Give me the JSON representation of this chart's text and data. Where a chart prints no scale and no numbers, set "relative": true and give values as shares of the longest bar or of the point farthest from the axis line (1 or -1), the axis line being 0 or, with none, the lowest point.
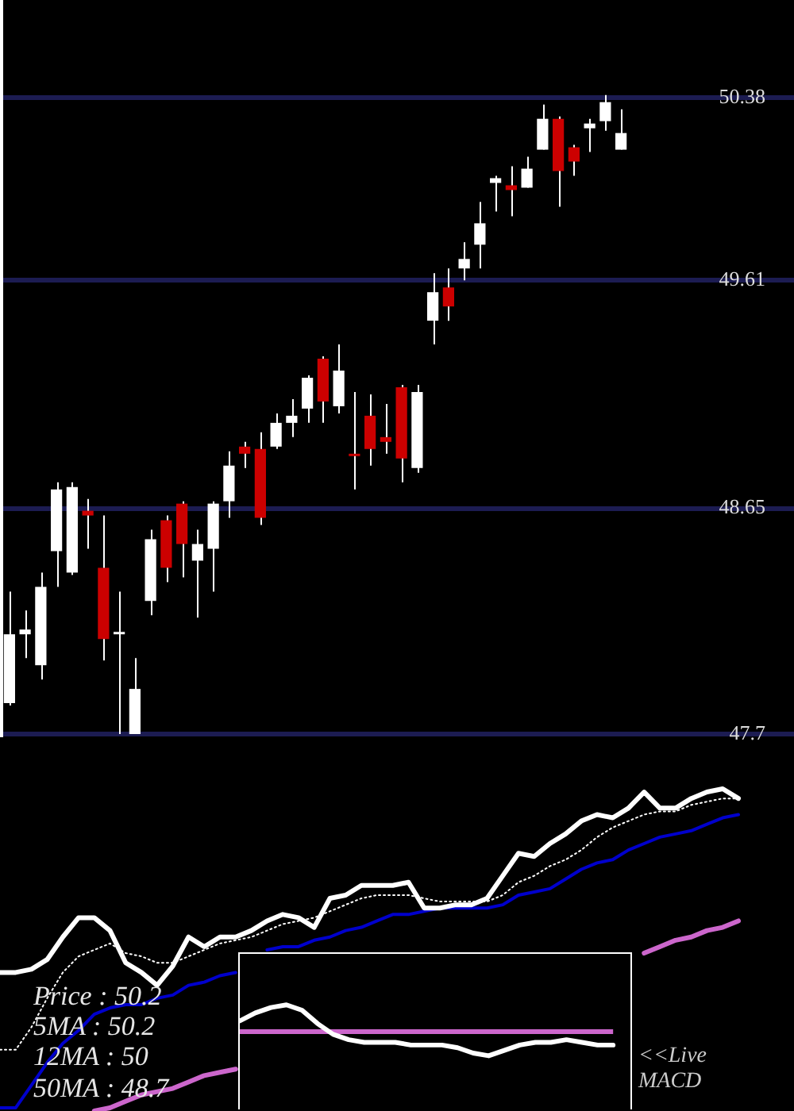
{
  "chart_data": [
    {
      "type": "candlestick",
      "categories": [
        null,
        null,
        null,
        null,
        null,
        null,
        null,
        null,
        null,
        null,
        null,
        null,
        null,
        null,
        null,
        null,
        null,
        null,
        null,
        null,
        null,
        null,
        null,
        null,
        null,
        null,
        null,
        null,
        null,
        null,
        null,
        null,
        null,
        null,
        null,
        null,
        null,
        null,
        null,
        null
      ],
      "ohlc": [
        [
          47.83,
          48.3,
          47.82,
          48.12
        ],
        [
          48.12,
          48.22,
          48.02,
          48.14
        ],
        [
          47.99,
          48.38,
          47.93,
          48.32
        ],
        [
          48.47,
          48.76,
          48.32,
          48.73
        ],
        [
          48.38,
          48.76,
          48.37,
          48.74
        ],
        [
          48.64,
          48.69,
          48.48,
          48.62
        ],
        [
          48.4,
          48.62,
          48.01,
          48.1
        ],
        [
          48.12,
          48.3,
          47.7,
          48.13
        ],
        [
          47.7,
          48.02,
          47.7,
          47.89
        ],
        [
          48.26,
          48.56,
          48.2,
          48.52
        ],
        [
          48.6,
          48.62,
          48.34,
          48.4
        ],
        [
          48.67,
          48.68,
          48.36,
          48.5
        ],
        [
          48.43,
          48.56,
          48.19,
          48.5
        ],
        [
          48.48,
          48.68,
          48.3,
          48.67
        ],
        [
          48.68,
          48.89,
          48.61,
          48.83
        ],
        [
          48.91,
          48.93,
          48.82,
          48.88
        ],
        [
          48.9,
          48.97,
          48.58,
          48.61
        ],
        [
          48.91,
          49.05,
          48.9,
          49.01
        ],
        [
          49.01,
          49.11,
          48.95,
          49.04
        ],
        [
          49.07,
          49.21,
          49.01,
          49.2
        ],
        [
          49.28,
          49.29,
          49.01,
          49.1
        ],
        [
          49.08,
          49.34,
          49.05,
          49.23
        ],
        [
          48.88,
          49.14,
          48.73,
          48.87
        ],
        [
          49.04,
          49.13,
          48.83,
          48.9
        ],
        [
          48.95,
          49.09,
          48.88,
          48.93
        ],
        [
          49.16,
          49.17,
          48.76,
          48.86
        ],
        [
          48.82,
          49.17,
          48.8,
          49.14
        ],
        [
          49.44,
          49.64,
          49.34,
          49.56
        ],
        [
          49.58,
          49.66,
          49.44,
          49.5
        ],
        [
          49.66,
          49.77,
          49.61,
          49.7
        ],
        [
          49.76,
          49.94,
          49.66,
          49.85
        ],
        [
          50.02,
          50.05,
          49.9,
          50.04
        ],
        [
          50.01,
          50.09,
          49.88,
          49.99
        ],
        [
          50.0,
          50.13,
          50.0,
          50.08
        ],
        [
          50.16,
          50.35,
          50.16,
          50.29
        ],
        [
          50.29,
          50.3,
          49.92,
          50.07
        ],
        [
          50.17,
          50.18,
          50.05,
          50.11
        ],
        [
          50.25,
          50.29,
          50.15,
          50.27
        ],
        [
          50.28,
          50.39,
          50.24,
          50.36
        ],
        [
          50.16,
          50.33,
          50.16,
          50.23
        ]
      ],
      "color": "#ffffff",
      "colors": [
        "#ffffff",
        "#ffffff",
        "#ffffff",
        "#ffffff",
        "#ffffff",
        "#cc0000",
        "#cc0000",
        "#ffffff",
        "#ffffff",
        "#ffffff",
        "#cc0000",
        "#cc0000",
        "#ffffff",
        "#ffffff",
        "#ffffff",
        "#cc0000",
        "#cc0000",
        "#ffffff",
        "#ffffff",
        "#ffffff",
        "#cc0000",
        "#ffffff",
        "#cc0000",
        "#cc0000",
        "#cc0000",
        "#cc0000",
        "#ffffff",
        "#ffffff",
        "#cc0000",
        "#ffffff",
        "#ffffff",
        "#ffffff",
        "#cc0000",
        "#ffffff",
        "#ffffff",
        "#cc0000",
        "#cc0000",
        "#ffffff",
        "#ffffff",
        "#ffffff"
      ],
      "ylim": [
        47.69,
        50.79
      ],
      "yticks": [
        47.7,
        48.65,
        49.61,
        50.38
      ],
      "grid": "y",
      "tick_labels": "y"
    },
    {
      "type": "line",
      "relative": true,
      "marker": "none",
      "categories": [
        null,
        null,
        null,
        null,
        null,
        null,
        null,
        null,
        null,
        null,
        null,
        null,
        null,
        null,
        null,
        null,
        null,
        null,
        null,
        null,
        null,
        null,
        null,
        null,
        null,
        null,
        null,
        null,
        null,
        null,
        null,
        null,
        null,
        null,
        null,
        null,
        null,
        null,
        null,
        null,
        null,
        null,
        null,
        null,
        null,
        null,
        null,
        null
      ],
      "series": [
        {
          "color": "#ffffff",
          "values": [
            0.43,
            0.43,
            0.44,
            0.47,
            0.54,
            0.6,
            0.6,
            0.56,
            0.46,
            0.43,
            0.39,
            0.45,
            0.54,
            0.51,
            0.54,
            0.54,
            0.56,
            0.59,
            0.61,
            0.6,
            0.57,
            0.66,
            0.67,
            0.7,
            0.7,
            0.7,
            0.71,
            0.63,
            0.63,
            0.64,
            0.64,
            0.66,
            0.73,
            0.8,
            0.79,
            0.83,
            0.86,
            0.9,
            0.92,
            0.91,
            0.94,
            0.99,
            0.94,
            0.94,
            0.97,
            0.99,
            1,
            0.97
          ]
        },
        {
          "color": "#ffffff",
          "line_style": "dotted",
          "values": [
            0.19,
            0.19,
            0.26,
            0.35,
            0.43,
            0.48,
            0.5,
            0.52,
            0.49,
            0.48,
            0.46,
            0.46,
            0.48,
            0.5,
            0.52,
            0.53,
            0.54,
            0.56,
            0.58,
            0.59,
            0.6,
            0.62,
            0.64,
            0.66,
            0.67,
            0.67,
            0.67,
            0.66,
            0.65,
            0.65,
            0.65,
            0.65,
            0.67,
            0.71,
            0.73,
            0.76,
            0.78,
            0.81,
            0.85,
            0.88,
            0.9,
            0.92,
            0.93,
            0.93,
            0.95,
            0.96,
            0.97,
            0.97
          ]
        },
        {
          "color": "#0000cc",
          "values": [
            0.01,
            0.01,
            0.08,
            0.15,
            0.21,
            0.25,
            0.3,
            0.32,
            0.33,
            0.33,
            0.35,
            0.36,
            0.39,
            0.4,
            0.42,
            0.43,
            null,
            0.5,
            0.51,
            0.51,
            0.53,
            0.54,
            0.56,
            0.57,
            0.59,
            0.61,
            0.61,
            0.62,
            0.63,
            0.63,
            0.63,
            0.63,
            0.64,
            0.67,
            0.68,
            0.69,
            0.72,
            0.75,
            0.77,
            0.78,
            0.81,
            0.83,
            0.85,
            0.86,
            0.87,
            0.89,
            0.91,
            0.92
          ]
        },
        {
          "color": "#cc66cc",
          "values": [
            null,
            null,
            null,
            null,
            null,
            null,
            0,
            0.01,
            0.03,
            0.05,
            0.06,
            0.07,
            0.09,
            0.11,
            0.12,
            0.13,
            null,
            null,
            null,
            null,
            null,
            null,
            null,
            null,
            null,
            null,
            null,
            null,
            null,
            null,
            null,
            null,
            null,
            null,
            null,
            null,
            null,
            null,
            null,
            null,
            null,
            0.49,
            0.51,
            0.53,
            0.54,
            0.56,
            0.57,
            0.59
          ]
        }
      ],
      "annotations": [
        "Price : 50.2",
        "5MA : 50.2",
        "12MA : 50",
        "50MA : 48.7",
        "<<Live MACD"
      ]
    },
    {
      "type": "line",
      "relative": true,
      "marker": "none",
      "categories": [
        null,
        null,
        null,
        null,
        null,
        null,
        null,
        null,
        null,
        null,
        null,
        null,
        null,
        null,
        null,
        null,
        null,
        null,
        null,
        null,
        null,
        null,
        null,
        null,
        null
      ],
      "series": [
        {
          "color": "#ffffff",
          "values": [
            0.4,
            0.7,
            0.9,
            1,
            0.8,
            0.3,
            -0.1,
            -0.3,
            -0.4,
            -0.4,
            -0.4,
            -0.5,
            -0.5,
            -0.5,
            -0.6,
            -0.8,
            -0.9,
            -0.7,
            -0.5,
            -0.4,
            -0.4,
            -0.3,
            -0.4,
            -0.5,
            -0.5
          ]
        }
      ],
      "ref_lines": [
        {
          "axis": "y",
          "value": 0,
          "color": "#cc66cc"
        }
      ]
    }
  ]
}
